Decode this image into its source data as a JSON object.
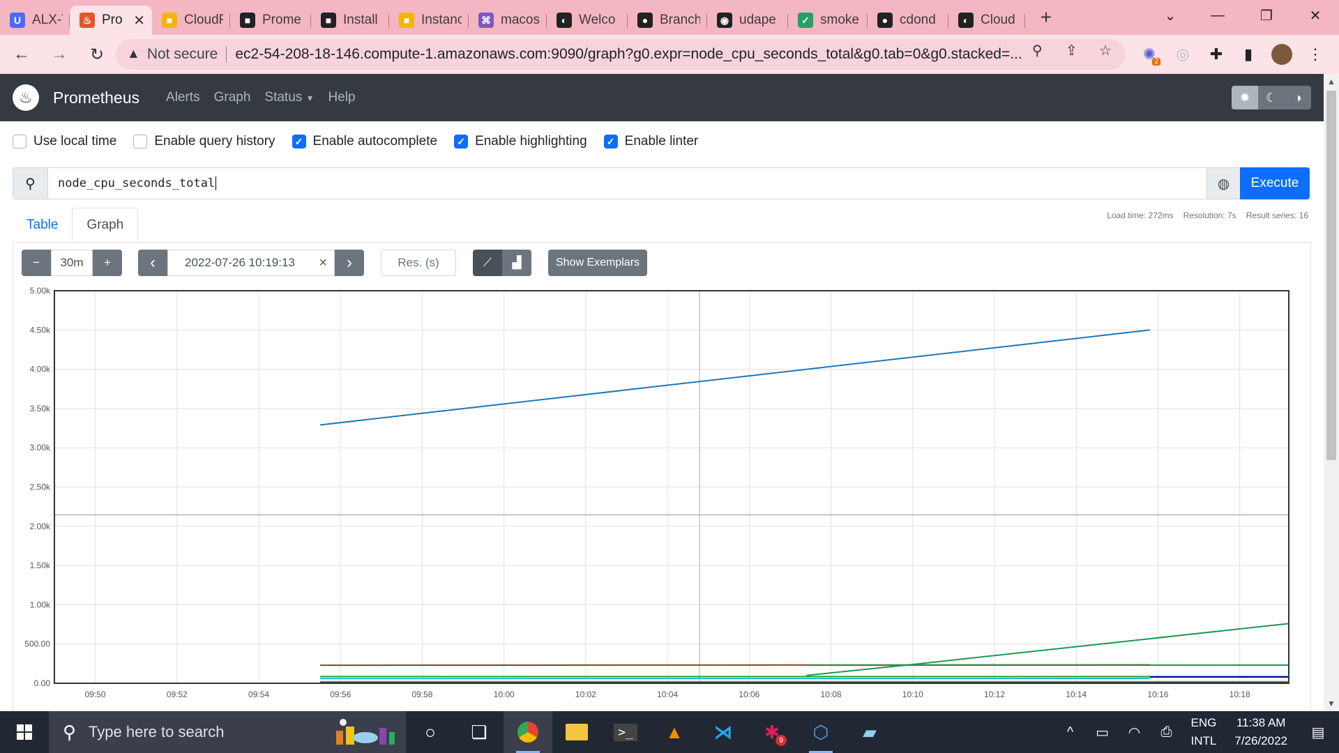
{
  "browser": {
    "tabs": [
      {
        "label": "ALX-T",
        "icon_color": "#4a6cf7",
        "icon_glyph": "U",
        "icon": "brand-u-icon"
      },
      {
        "label": "Pro",
        "icon_color": "#e6522c",
        "icon_glyph": "♨",
        "icon": "prometheus-icon",
        "active": true
      },
      {
        "label": "CloudF",
        "icon_color": "#f4b400",
        "icon_glyph": "■",
        "icon": "cube-icon"
      },
      {
        "label": "Prome",
        "icon_color": "#222222",
        "icon_glyph": "■",
        "icon": "terminal-icon"
      },
      {
        "label": "Install",
        "icon_color": "#222222",
        "icon_glyph": "■",
        "icon": "terminal-icon"
      },
      {
        "label": "Instanc",
        "icon_color": "#f4b400",
        "icon_glyph": "■",
        "icon": "cube-icon"
      },
      {
        "label": "macos",
        "icon_color": "#7e57c2",
        "icon_glyph": "⌘",
        "icon": "command-icon"
      },
      {
        "label": "Welco",
        "icon_color": "#222222",
        "icon_glyph": "◐",
        "icon": "globe-icon"
      },
      {
        "label": "Branch",
        "icon_color": "#222222",
        "icon_glyph": "●",
        "icon": "github-icon"
      },
      {
        "label": "udape",
        "icon_color": "#222222",
        "icon_glyph": "◉",
        "icon": "circle-icon"
      },
      {
        "label": "smoke",
        "icon_color": "#21a366",
        "icon_glyph": "✓",
        "icon": "check-circle-icon"
      },
      {
        "label": "cdond",
        "icon_color": "#222222",
        "icon_glyph": "●",
        "icon": "github-icon"
      },
      {
        "label": "Cloud",
        "icon_color": "#222222",
        "icon_glyph": "◐",
        "icon": "globe-icon"
      }
    ],
    "address": {
      "security": "Not secure",
      "url": "ec2-54-208-18-146.compute-1.amazonaws.com:9090/graph?g0.expr=node_cpu_seconds_total&g0.tab=0&g0.stacked=..."
    },
    "extension_badge": "2"
  },
  "prometheus": {
    "brand": "Prometheus",
    "nav": {
      "alerts": "Alerts",
      "graph": "Graph",
      "status": "Status",
      "help": "Help"
    },
    "options": [
      {
        "label": "Use local time",
        "checked": false
      },
      {
        "label": "Enable query history",
        "checked": false
      },
      {
        "label": "Enable autocomplete",
        "checked": true
      },
      {
        "label": "Enable highlighting",
        "checked": true
      },
      {
        "label": "Enable linter",
        "checked": true
      }
    ],
    "query": "node_cpu_seconds_total",
    "execute_label": "Execute",
    "tabs": {
      "table": "Table",
      "graph": "Graph"
    },
    "stats": {
      "load_time": "Load time: 272ms",
      "resolution": "Resolution: 7s",
      "result_series": "Result series: 16"
    },
    "controls": {
      "minus": "−",
      "range": "30m",
      "plus": "+",
      "prev": "‹",
      "end_time": "2022-07-26 10:19:13",
      "clear": "×",
      "next": "›",
      "resolution_placeholder": "Res. (s)",
      "show_exemplars": "Show Exemplars"
    }
  },
  "chart_data": {
    "type": "line",
    "ylim": [
      0,
      5000
    ],
    "yticks": [
      0,
      500,
      1000,
      1500,
      2000,
      2500,
      3000,
      3500,
      4000,
      4500,
      5000
    ],
    "ytick_labels": [
      "0.00",
      "500.00",
      "1.00k",
      "1.50k",
      "2.00k",
      "2.50k",
      "3.00k",
      "3.50k",
      "4.00k",
      "4.50k",
      "5.00k"
    ],
    "xlim_minutes": [
      -1,
      29.2
    ],
    "xtick_labels": [
      "09:50",
      "09:52",
      "09:54",
      "09:56",
      "09:58",
      "10:00",
      "10:02",
      "10:04",
      "10:06",
      "10:08",
      "10:10",
      "10:12",
      "10:14",
      "10:16",
      "10:18"
    ],
    "xtick_minutes": [
      0,
      2,
      4,
      6,
      8,
      10,
      12,
      14,
      16,
      18,
      20,
      22,
      24,
      26,
      28
    ],
    "series": [
      {
        "color": "#1f77b4",
        "x": [
          5.5,
          25.8
        ],
        "y": [
          3290,
          4500
        ]
      },
      {
        "color": "#8b4513",
        "x": [
          5.5,
          25.8
        ],
        "y": [
          230,
          235
        ]
      },
      {
        "color": "#1a9850",
        "x": [
          17.4,
          20.0,
          29.2
        ],
        "y": [
          100,
          240,
          760
        ]
      },
      {
        "color": "#2ca02c",
        "x": [
          5.5,
          29.2
        ],
        "y": [
          85,
          85
        ]
      },
      {
        "color": "#17becf",
        "x": [
          5.5,
          25.8
        ],
        "y": [
          60,
          62
        ]
      },
      {
        "color": "#1a9850",
        "x": [
          17.4,
          29.2
        ],
        "y": [
          230,
          232
        ]
      },
      {
        "color": "#0000cc",
        "x": [
          25.8,
          29.2
        ],
        "y": [
          80,
          80
        ]
      },
      {
        "color": "#cc7a00",
        "x": [
          5.5,
          29.2
        ],
        "y": [
          20,
          20
        ]
      },
      {
        "color": "#444444",
        "x": [
          5.5,
          29.2
        ],
        "y": [
          10,
          10
        ]
      }
    ],
    "grid": true
  },
  "taskbar": {
    "search_placeholder": "Type here to search",
    "language": "ENG",
    "layout": "INTL",
    "time": "11:38 AM",
    "date": "7/26/2022",
    "slack_badge": "9"
  }
}
